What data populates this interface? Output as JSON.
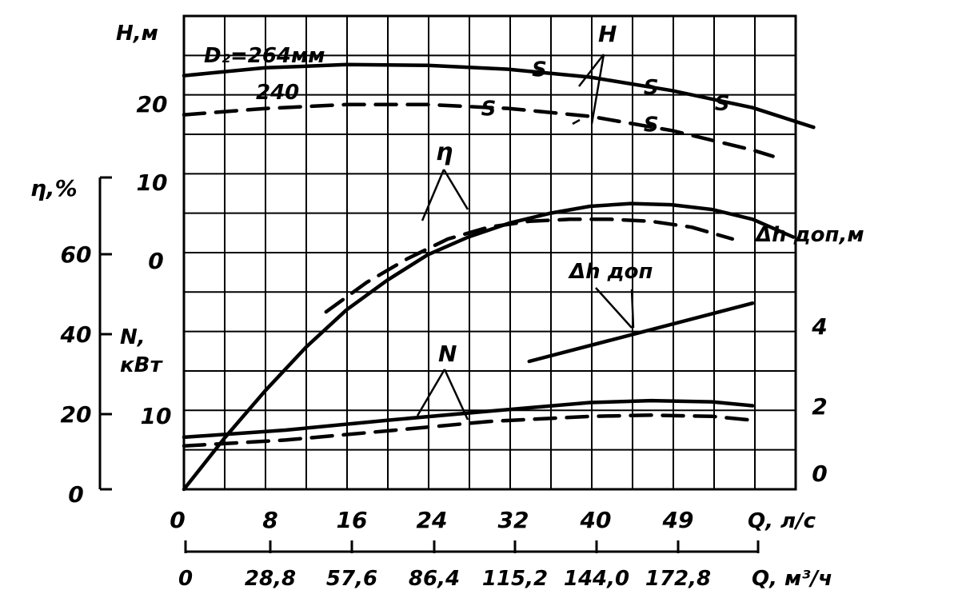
{
  "chart_data": {
    "type": "line",
    "axes": {
      "head": {
        "label": "H,м",
        "ticks": [
          "20",
          "10",
          "0"
        ]
      },
      "efficiency": {
        "label": "η,%",
        "ticks": [
          "60",
          "40",
          "20",
          "0"
        ]
      },
      "power": {
        "label_line1": "N,",
        "label_line2": "кВт",
        "ticks": [
          "10"
        ]
      },
      "npsh": {
        "label": "Δh доп,м",
        "ticks": [
          "4",
          "2",
          "0"
        ]
      },
      "flow_ls": {
        "label": "Q, л/с",
        "ticks": [
          "0",
          "8",
          "16",
          "24",
          "32",
          "40",
          "49"
        ]
      },
      "flow_m3h": {
        "label": "Q, м³/ч",
        "ticks": [
          "0",
          "28,8",
          "57,6",
          "86,4",
          "115,2",
          "144,0",
          "172,8"
        ]
      }
    },
    "annotations": {
      "d264": "D₂=264мм",
      "d240": "240",
      "H": "H",
      "eta": "η",
      "N": "N",
      "dh": "Δh доп",
      "s_mark": "S"
    },
    "grid": true,
    "x_range": [
      0,
      62
    ],
    "series": [
      {
        "name": "H D2=264мм",
        "style": "solid",
        "axis": "head",
        "points": [
          [
            0,
            22.8
          ],
          [
            8,
            23.8
          ],
          [
            16,
            24.2
          ],
          [
            24,
            24.1
          ],
          [
            32,
            23.6
          ],
          [
            40,
            22.6
          ],
          [
            48,
            20.9
          ],
          [
            56,
            18.7
          ],
          [
            62,
            16.2
          ]
        ]
      },
      {
        "name": "H 240",
        "style": "dashed",
        "axis": "head",
        "points": [
          [
            0,
            17.8
          ],
          [
            8,
            18.6
          ],
          [
            16,
            19.1
          ],
          [
            24,
            19.1
          ],
          [
            32,
            18.6
          ],
          [
            40,
            17.6
          ],
          [
            48,
            15.8
          ],
          [
            56,
            13.3
          ],
          [
            58,
            12.5
          ]
        ]
      },
      {
        "name": "η D2=264мм",
        "style": "solid",
        "axis": "efficiency",
        "points": [
          [
            0,
            0
          ],
          [
            4,
            13
          ],
          [
            8,
            25
          ],
          [
            12,
            36
          ],
          [
            16,
            45.5
          ],
          [
            20,
            53
          ],
          [
            24,
            59.5
          ],
          [
            28,
            64
          ],
          [
            32,
            67.5
          ],
          [
            36,
            70
          ],
          [
            40,
            71.8
          ],
          [
            44,
            72.5
          ],
          [
            48,
            72.2
          ],
          [
            52,
            71
          ],
          [
            56,
            68.5
          ],
          [
            60,
            64
          ]
        ]
      },
      {
        "name": "η 240",
        "style": "dashed",
        "axis": "efficiency",
        "points": [
          [
            14,
            45
          ],
          [
            18,
            52.5
          ],
          [
            22,
            58.5
          ],
          [
            26,
            63.5
          ],
          [
            30,
            66.5
          ],
          [
            34,
            68
          ],
          [
            38,
            68.5
          ],
          [
            42,
            68.5
          ],
          [
            46,
            68
          ],
          [
            50,
            66.5
          ],
          [
            54,
            63.5
          ]
        ]
      },
      {
        "name": "N D2=264мм",
        "style": "solid",
        "axis": "efficiency",
        "points": [
          [
            0,
            13.2
          ],
          [
            10,
            15
          ],
          [
            20,
            17.5
          ],
          [
            30,
            19.8
          ],
          [
            40,
            22
          ],
          [
            46,
            22.5
          ],
          [
            52,
            22.2
          ],
          [
            56,
            21.2
          ]
        ]
      },
      {
        "name": "N 240",
        "style": "dashed",
        "axis": "efficiency",
        "points": [
          [
            0,
            11
          ],
          [
            10,
            12.5
          ],
          [
            20,
            14.8
          ],
          [
            30,
            17.2
          ],
          [
            40,
            18.5
          ],
          [
            46,
            18.8
          ],
          [
            52,
            18.5
          ],
          [
            56,
            17.5
          ]
        ]
      },
      {
        "name": "Δh доп",
        "style": "solid",
        "axis": "npsh",
        "points": [
          [
            34,
            3.3
          ],
          [
            56,
            4.8
          ]
        ]
      }
    ],
    "s_marks": [
      [
        35,
        23.5
      ],
      [
        46,
        21.2
      ],
      [
        53,
        19.2
      ],
      [
        30,
        18.5
      ],
      [
        46,
        16.5
      ]
    ]
  }
}
